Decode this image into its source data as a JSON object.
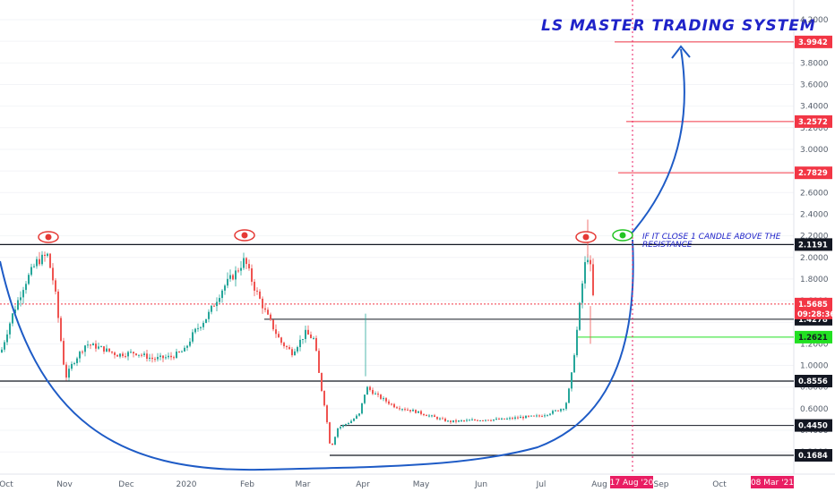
{
  "chart_data": {
    "type": "candlestick",
    "title": "LS MASTER TRADING SYSTEM",
    "annotation": "IF IT CLOSE 1 CANDLE ABOVE THE RESISTANCE",
    "y_ticks": [
      "4.2000",
      "4.0000",
      "3.8000",
      "3.6000",
      "3.4000",
      "3.2000",
      "3.0000",
      "2.8000",
      "2.6000",
      "2.4000",
      "2.2000",
      "2.0000",
      "1.8000",
      "1.6000",
      "1.4000",
      "1.2000",
      "1.0000",
      "0.8000",
      "0.6000",
      "0.4000",
      "0.2000"
    ],
    "x_labels": [
      "Oct",
      "Nov",
      "Dec",
      "2020",
      "Feb",
      "Mar",
      "Apr",
      "May",
      "Jun",
      "Jul",
      "Aug",
      "Sep",
      "Oct"
    ],
    "x_highlights": [
      "17 Aug '20",
      "08 Mar '21"
    ],
    "countdown": "09:28:36",
    "levels": [
      {
        "label": "3.9942",
        "value": 3.9942,
        "color": "#f23645",
        "kind": "target"
      },
      {
        "label": "3.2572",
        "value": 3.2572,
        "color": "#f23645",
        "kind": "target"
      },
      {
        "label": "2.7829",
        "value": 2.7829,
        "color": "#f23645",
        "kind": "target"
      },
      {
        "label": "2.1191",
        "value": 2.1191,
        "color": "#131722",
        "kind": "resistance"
      },
      {
        "label": "1.5685",
        "value": 1.5685,
        "color": "#f23645",
        "kind": "last-price"
      },
      {
        "label": "1.4278",
        "value": 1.4278,
        "color": "#131722",
        "kind": "support"
      },
      {
        "label": "1.2621",
        "value": 1.2621,
        "color": "#22e022",
        "kind": "entry"
      },
      {
        "label": "0.8556",
        "value": 0.8556,
        "color": "#131722",
        "kind": "support"
      },
      {
        "label": "0.4450",
        "value": 0.445,
        "color": "#131722",
        "kind": "support"
      },
      {
        "label": "0.1684",
        "value": 0.1684,
        "color": "#131722",
        "kind": "support"
      }
    ],
    "colors": {
      "up": "#26a69a",
      "down": "#ef5350",
      "drawing": "#1e5bc6",
      "accent": "#e91e63"
    }
  }
}
